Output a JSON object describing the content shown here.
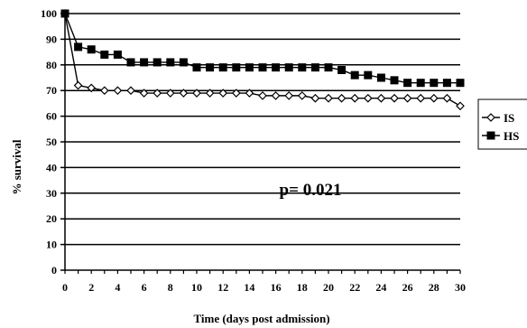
{
  "chart_data": {
    "type": "line",
    "title": "",
    "xlabel": "Time (days post admission)",
    "ylabel": "% survival",
    "xlim": [
      0,
      30
    ],
    "ylim": [
      0,
      100
    ],
    "x_ticks": [
      0,
      2,
      4,
      6,
      8,
      10,
      12,
      14,
      16,
      18,
      20,
      22,
      24,
      26,
      28,
      30
    ],
    "y_ticks": [
      0,
      10,
      20,
      30,
      40,
      50,
      60,
      70,
      80,
      90,
      100
    ],
    "x_tick_labels": [
      "0",
      "2",
      "4",
      "6",
      "8",
      "10",
      "12",
      "14",
      "16",
      "18",
      "20",
      "22",
      "24",
      "26",
      "28",
      "30"
    ],
    "y_tick_labels": [
      "0",
      "10",
      "20",
      "30",
      "40",
      "50",
      "60",
      "70",
      "80",
      "90",
      "100"
    ],
    "grid": "horizontal",
    "legend_position": "right",
    "annotation": "p= 0.021",
    "series": [
      {
        "name": "IS",
        "marker": "open-diamond",
        "color": "#000000",
        "x": [
          0,
          1,
          2,
          3,
          4,
          5,
          6,
          7,
          8,
          9,
          10,
          11,
          12,
          13,
          14,
          15,
          16,
          17,
          18,
          19,
          20,
          21,
          22,
          23,
          24,
          25,
          26,
          27,
          28,
          29,
          30
        ],
        "values": [
          100,
          72,
          71,
          70,
          70,
          70,
          69,
          69,
          69,
          69,
          69,
          69,
          69,
          69,
          69,
          68,
          68,
          68,
          68,
          67,
          67,
          67,
          67,
          67,
          67,
          67,
          67,
          67,
          67,
          67,
          64
        ]
      },
      {
        "name": "HS",
        "marker": "filled-square",
        "color": "#000000",
        "x": [
          0,
          1,
          2,
          3,
          4,
          5,
          6,
          7,
          8,
          9,
          10,
          11,
          12,
          13,
          14,
          15,
          16,
          17,
          18,
          19,
          20,
          21,
          22,
          23,
          24,
          25,
          26,
          27,
          28,
          29,
          30
        ],
        "values": [
          100,
          87,
          86,
          84,
          84,
          81,
          81,
          81,
          81,
          81,
          79,
          79,
          79,
          79,
          79,
          79,
          79,
          79,
          79,
          79,
          79,
          78,
          76,
          76,
          75,
          74,
          73,
          73,
          73,
          73,
          73
        ]
      }
    ]
  }
}
